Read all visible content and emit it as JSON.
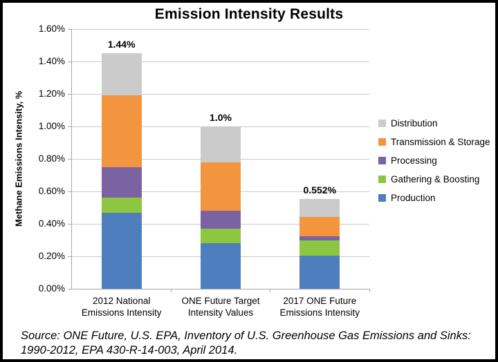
{
  "chart_data": {
    "type": "bar",
    "stacked": true,
    "title": "Emission Intensity Results",
    "ylabel": "Methane Emissions Intensity, %",
    "ylim": [
      0,
      1.6
    ],
    "ytick_step": 0.2,
    "ytick_labels": [
      "0.00%",
      "0.20%",
      "0.40%",
      "0.60%",
      "0.80%",
      "1.00%",
      "1.20%",
      "1.40%",
      "1.60%"
    ],
    "grid": true,
    "legend_position": "right",
    "categories": [
      [
        "2012 National",
        "Emissions Intensity"
      ],
      [
        "ONE Future Target",
        "Intensity Values"
      ],
      [
        "2017 ONE Future",
        "Emissions Intensity"
      ]
    ],
    "series": [
      {
        "name": "Production",
        "color": "#4e7ebd",
        "values": [
          0.47,
          0.28,
          0.205
        ],
        "labels": [
          "0.47%",
          "0.28%",
          "0.205%"
        ]
      },
      {
        "name": "Gathering & Boosting",
        "color": "#8dc63f",
        "values": [
          0.09,
          0.09,
          0.093
        ],
        "labels": [
          "0.09%",
          "0.09%",
          "0.093%"
        ]
      },
      {
        "name": "Processing",
        "color": "#7b62a2",
        "values": [
          0.19,
          0.11,
          0.024
        ],
        "labels": [
          "0.19%",
          "0.11%",
          "0.024%"
        ]
      },
      {
        "name": "Transmission & Storage",
        "color": "#f3953f",
        "values": [
          0.44,
          0.3,
          0.122
        ],
        "labels": [
          "0.44%",
          "0.30%",
          "0.122%"
        ]
      },
      {
        "name": "Distribution",
        "color": "#cbcbcb",
        "values": [
          0.26,
          0.22,
          0.108
        ],
        "labels": [
          "0.26%",
          "0.22%",
          "0.108%"
        ]
      }
    ],
    "totals": [
      "1.44%",
      "1.0%",
      "0.552%"
    ],
    "axis_color": "#a6a6a6",
    "grid_color": "#c9c9c9"
  },
  "source": {
    "line1": "Source: ONE Future, U.S. EPA, Inventory of U.S. Greenhouse Gas Emissions and Sinks:",
    "line2": "1990-2012, EPA 430-R-14-003, April 2014."
  }
}
